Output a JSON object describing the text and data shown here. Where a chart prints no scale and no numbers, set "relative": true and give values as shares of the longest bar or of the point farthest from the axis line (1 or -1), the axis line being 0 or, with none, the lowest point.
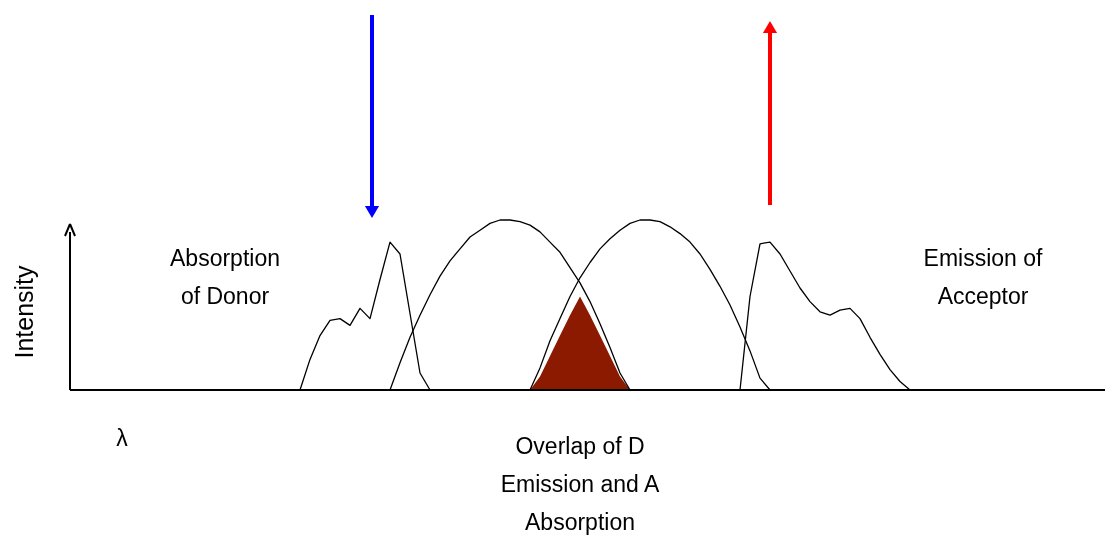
{
  "chart_data": {
    "type": "line",
    "relative": true,
    "xlabel": "λ",
    "ylabel": "Intensity",
    "categories": [
      null,
      null,
      null,
      null,
      null,
      null,
      null,
      null,
      null,
      null,
      null,
      null,
      null,
      null,
      null,
      null,
      null,
      null,
      null,
      null,
      null,
      null,
      null,
      null,
      null,
      null,
      null,
      null,
      null,
      null,
      null,
      null,
      null,
      null,
      null,
      null,
      null,
      null,
      null,
      null,
      null,
      null,
      null,
      null,
      null,
      null,
      null,
      null,
      null,
      null,
      null,
      null,
      null,
      null,
      null,
      null,
      null,
      null,
      null,
      null,
      null,
      null,
      null,
      null,
      null,
      null,
      null,
      null,
      null,
      null,
      null,
      null,
      null,
      null,
      null,
      null,
      null,
      null,
      null,
      null,
      null,
      null,
      null,
      null,
      null,
      null,
      null,
      null,
      null,
      null,
      null,
      null,
      null,
      null,
      null,
      null,
      null,
      null,
      null,
      null,
      null,
      null,
      null,
      null
    ],
    "series": [
      {
        "type": "area",
        "color": "#8b1a00",
        "values": [
          null,
          null,
          null,
          null,
          null,
          null,
          null,
          null,
          null,
          null,
          null,
          null,
          null,
          null,
          null,
          null,
          null,
          null,
          null,
          null,
          null,
          null,
          null,
          null,
          null,
          null,
          null,
          null,
          null,
          null,
          null,
          null,
          null,
          null,
          null,
          null,
          null,
          null,
          null,
          null,
          null,
          null,
          null,
          null,
          null,
          null,
          0,
          0.08,
          0.2,
          0.32,
          0.44,
          0.55,
          0.44,
          0.32,
          0.2,
          0.08,
          0,
          null,
          null,
          null,
          null,
          null,
          null,
          null,
          null,
          null,
          null,
          null,
          null,
          null,
          null,
          null,
          null,
          null,
          null,
          null,
          null,
          null,
          null,
          null,
          null,
          null,
          null,
          null,
          null,
          null,
          null,
          null,
          null,
          null,
          null,
          null,
          null,
          null,
          null,
          null,
          null,
          null,
          null,
          null,
          null,
          null,
          null,
          null
        ]
      },
      {
        "color": "#000000",
        "values": [
          null,
          null,
          null,
          null,
          null,
          null,
          null,
          null,
          null,
          null,
          null,
          null,
          null,
          null,
          null,
          null,
          null,
          null,
          null,
          null,
          null,
          null,
          null,
          0,
          0.18,
          0.32,
          0.41,
          0.42,
          0.38,
          0.48,
          0.42,
          0.65,
          0.87,
          0.8,
          0.45,
          0.1,
          0,
          null,
          null,
          null,
          null,
          null,
          null,
          null,
          null,
          null,
          null,
          null,
          null,
          null,
          null,
          null,
          null,
          null,
          null,
          null,
          null,
          null,
          null,
          null,
          null,
          null,
          null,
          null,
          null,
          null,
          null,
          null,
          null,
          null,
          null,
          null,
          null,
          null,
          null,
          null,
          null,
          null,
          null,
          null,
          null,
          null,
          null,
          null,
          null,
          null,
          null,
          null,
          null,
          null,
          null,
          null,
          null,
          null,
          null,
          null,
          null,
          null,
          null,
          null,
          null,
          null,
          null,
          null
        ]
      },
      {
        "color": "#000000",
        "values": [
          null,
          null,
          null,
          null,
          null,
          null,
          null,
          null,
          null,
          null,
          null,
          null,
          null,
          null,
          null,
          null,
          null,
          null,
          null,
          null,
          null,
          null,
          null,
          null,
          null,
          null,
          null,
          null,
          null,
          null,
          null,
          null,
          0,
          0.16,
          0.31,
          0.44,
          0.56,
          0.67,
          0.76,
          0.83,
          0.9,
          0.94,
          0.98,
          1,
          1,
          0.99,
          0.97,
          0.93,
          0.87,
          0.81,
          0.72,
          0.63,
          0.52,
          0.39,
          0.25,
          0.1,
          0,
          null,
          null,
          null,
          null,
          null,
          null,
          null,
          null,
          null,
          null,
          null,
          null,
          null,
          null,
          null,
          null,
          null,
          null,
          null,
          null,
          null,
          null,
          null,
          null,
          null,
          null,
          null,
          null,
          null,
          null,
          null,
          null,
          null,
          null,
          null,
          null,
          null,
          null,
          null,
          null,
          null,
          null,
          null,
          null,
          null,
          null,
          null
        ]
      },
      {
        "color": "#000000",
        "values": [
          null,
          null,
          null,
          null,
          null,
          null,
          null,
          null,
          null,
          null,
          null,
          null,
          null,
          null,
          null,
          null,
          null,
          null,
          null,
          null,
          null,
          null,
          null,
          null,
          null,
          null,
          null,
          null,
          null,
          null,
          null,
          null,
          null,
          null,
          null,
          null,
          null,
          null,
          null,
          null,
          null,
          null,
          null,
          null,
          null,
          null,
          0,
          0.13,
          0.29,
          0.42,
          0.55,
          0.66,
          0.75,
          0.83,
          0.89,
          0.94,
          0.98,
          1,
          1,
          0.99,
          0.96,
          0.92,
          0.87,
          0.8,
          0.71,
          0.61,
          0.5,
          0.37,
          0.23,
          0.07,
          0,
          null,
          null,
          null,
          null,
          null,
          null,
          null,
          null,
          null,
          null,
          null,
          null,
          null,
          null,
          null,
          null,
          null,
          null,
          null,
          null,
          null,
          null,
          null,
          null,
          null,
          null,
          null,
          null,
          null,
          null,
          null,
          null,
          null
        ]
      },
      {
        "color": "#000000",
        "values": [
          null,
          null,
          null,
          null,
          null,
          null,
          null,
          null,
          null,
          null,
          null,
          null,
          null,
          null,
          null,
          null,
          null,
          null,
          null,
          null,
          null,
          null,
          null,
          null,
          null,
          null,
          null,
          null,
          null,
          null,
          null,
          null,
          null,
          null,
          null,
          null,
          null,
          null,
          null,
          null,
          null,
          null,
          null,
          null,
          null,
          null,
          null,
          null,
          null,
          null,
          null,
          null,
          null,
          null,
          null,
          null,
          null,
          null,
          null,
          null,
          null,
          null,
          null,
          null,
          null,
          null,
          null,
          0,
          0.55,
          0.86,
          0.87,
          0.8,
          0.7,
          0.6,
          0.52,
          0.46,
          0.44,
          0.47,
          0.48,
          0.42,
          0.31,
          0.21,
          0.12,
          0.05,
          0,
          null,
          null,
          null,
          null,
          null,
          null,
          null,
          null,
          null,
          null,
          null,
          null,
          null,
          null,
          null,
          null,
          null,
          null,
          null
        ]
      }
    ],
    "annotations": [
      "Absorption of Donor",
      "Emission of Acceptor",
      "Overlap of D Emission and A Absorption"
    ]
  }
}
